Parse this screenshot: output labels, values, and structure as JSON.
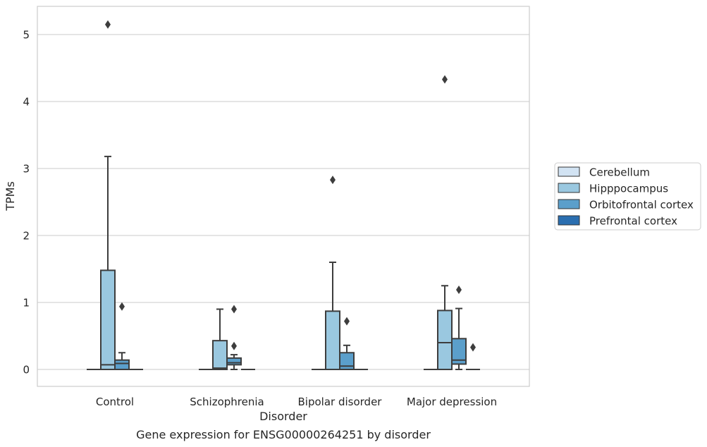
{
  "chart_data": {
    "type": "box",
    "caption": "Gene expression for ENSG00000264251 by disorder",
    "xlabel": "Disorder",
    "ylabel": "TPMs",
    "ylim": [
      -0.25,
      5.4
    ],
    "yticks": [
      0,
      1,
      2,
      3,
      4,
      5
    ],
    "grid": true,
    "legend_position": "right",
    "categories": [
      "Control",
      "Schizophrenia",
      "Bipolar disorder",
      "Major depression"
    ],
    "series": [
      {
        "name": "Cerebellum",
        "color": "#d2e3f3",
        "boxes": [
          {
            "min": 0,
            "q1": 0,
            "median": 0,
            "q3": 0,
            "max": 0,
            "outliers": []
          },
          {
            "min": 0,
            "q1": 0,
            "median": 0,
            "q3": 0,
            "max": 0,
            "outliers": []
          },
          {
            "min": 0,
            "q1": 0,
            "median": 0,
            "q3": 0,
            "max": 0,
            "outliers": []
          },
          {
            "min": 0,
            "q1": 0,
            "median": 0,
            "q3": 0,
            "max": 0,
            "outliers": []
          }
        ]
      },
      {
        "name": "Hipppocampus",
        "color": "#9ac8e0",
        "boxes": [
          {
            "min": 0,
            "q1": 0,
            "median": 0.07,
            "q3": 1.48,
            "max": 3.18,
            "outliers": [
              5.15
            ]
          },
          {
            "min": 0,
            "q1": 0,
            "median": 0.02,
            "q3": 0.43,
            "max": 0.9,
            "outliers": []
          },
          {
            "min": 0,
            "q1": 0,
            "median": 0,
            "q3": 0.87,
            "max": 1.6,
            "outliers": [
              2.83
            ]
          },
          {
            "min": 0,
            "q1": 0,
            "median": 0.4,
            "q3": 0.88,
            "max": 1.25,
            "outliers": [
              4.33
            ]
          }
        ]
      },
      {
        "name": "Orbitofrontal cortex",
        "color": "#5b9fcb",
        "boxes": [
          {
            "min": 0,
            "q1": 0,
            "median": 0.09,
            "q3": 0.14,
            "max": 0.25,
            "outliers": [
              0.94
            ]
          },
          {
            "min": 0,
            "q1": 0.07,
            "median": 0.1,
            "q3": 0.17,
            "max": 0.22,
            "outliers": [
              0.9,
              0.35
            ]
          },
          {
            "min": 0,
            "q1": 0,
            "median": 0.05,
            "q3": 0.25,
            "max": 0.36,
            "outliers": [
              0.72
            ]
          },
          {
            "min": 0,
            "q1": 0.08,
            "median": 0.14,
            "q3": 0.46,
            "max": 0.91,
            "outliers": [
              1.19
            ]
          }
        ]
      },
      {
        "name": "Prefrontal cortex",
        "color": "#2a6eb0",
        "boxes": [
          {
            "min": 0,
            "q1": 0,
            "median": 0,
            "q3": 0,
            "max": 0,
            "outliers": []
          },
          {
            "min": 0,
            "q1": 0,
            "median": 0,
            "q3": 0,
            "max": 0,
            "outliers": []
          },
          {
            "min": 0,
            "q1": 0,
            "median": 0,
            "q3": 0,
            "max": 0,
            "outliers": []
          },
          {
            "min": 0,
            "q1": 0,
            "median": 0,
            "q3": 0,
            "max": 0.0,
            "outliers": [
              0.33
            ]
          }
        ]
      }
    ]
  }
}
